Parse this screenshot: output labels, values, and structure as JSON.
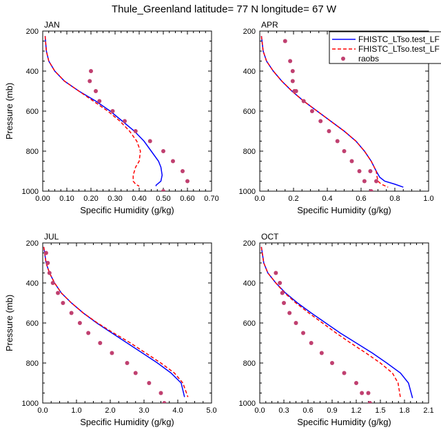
{
  "title": "Thule_Greenland  latitude= 77 N longitude= 67 W",
  "legend": {
    "placement": "top-right",
    "entries": [
      {
        "label": "FHISTC_LTso.test_LF",
        "style": "solid",
        "color": "#0000ff"
      },
      {
        "label": "FHISTC_LTso.test_LF",
        "style": "dashed",
        "color": "#ff0000"
      },
      {
        "label": "raobs",
        "style": "marker",
        "color": "#c04070"
      }
    ]
  },
  "chart_data": [
    {
      "type": "line",
      "panel": "JAN",
      "xlabel": "Specific Humidity (g/kg)",
      "ylabel": "Pressure (mb)",
      "xlim": [
        0,
        0.7
      ],
      "ylim": [
        200,
        1000
      ],
      "y_inverted": true,
      "xticks": [
        "0.00",
        "0.10",
        "0.20",
        "0.30",
        "0.40",
        "0.50",
        "0.60",
        "0.70"
      ],
      "xtick_values": [
        0,
        0.1,
        0.2,
        0.3,
        0.4,
        0.5,
        0.6,
        0.7
      ],
      "yticks": [
        "200",
        "400",
        "600",
        "800",
        "1000"
      ],
      "ytick_values": [
        200,
        400,
        600,
        800,
        1000
      ],
      "series": [
        {
          "name": "FHISTC_LTso.test_LF",
          "style": "solid",
          "color": "#0000ff",
          "x": [
            0.01,
            0.015,
            0.025,
            0.05,
            0.09,
            0.15,
            0.22,
            0.28,
            0.33,
            0.38,
            0.42,
            0.45,
            0.48,
            0.49,
            0.495,
            0.49,
            0.48,
            0.47,
            0.47
          ],
          "y": [
            225,
            300,
            350,
            400,
            450,
            500,
            550,
            600,
            650,
            700,
            750,
            800,
            850,
            880,
            920,
            950,
            960,
            970,
            975
          ]
        },
        {
          "name": "FHISTC_LTso.test_LF",
          "style": "dashed",
          "color": "#ff0000",
          "x": [
            0.01,
            0.015,
            0.025,
            0.05,
            0.09,
            0.15,
            0.21,
            0.27,
            0.32,
            0.36,
            0.39,
            0.405,
            0.4,
            0.385,
            0.375,
            0.375,
            0.385,
            0.4
          ],
          "y": [
            225,
            300,
            350,
            400,
            450,
            500,
            550,
            600,
            650,
            700,
            750,
            800,
            850,
            880,
            920,
            950,
            965,
            975
          ]
        },
        {
          "name": "raobs",
          "style": "marker",
          "color": "#c04070",
          "x": [
            0.2,
            0.195,
            0.22,
            0.235,
            0.29,
            0.34,
            0.385,
            0.445,
            0.5,
            0.54,
            0.58,
            0.6,
            0.5
          ],
          "y": [
            400,
            450,
            500,
            550,
            600,
            650,
            700,
            750,
            800,
            850,
            900,
            950,
            1000
          ]
        }
      ]
    },
    {
      "type": "line",
      "panel": "APR",
      "xlabel": "Specific Humidity (g/kg)",
      "ylabel": "",
      "xlim": [
        0,
        1.0
      ],
      "ylim": [
        200,
        1000
      ],
      "y_inverted": true,
      "xticks": [
        "0.0",
        "0.2",
        "0.4",
        "0.6",
        "0.8",
        "1.0"
      ],
      "xtick_values": [
        0,
        0.2,
        0.4,
        0.6,
        0.8,
        1.0
      ],
      "yticks": [
        "200",
        "400",
        "600",
        "800",
        "1000"
      ],
      "ytick_values": [
        200,
        400,
        600,
        800,
        1000
      ],
      "series": [
        {
          "name": "FHISTC_LTso.test_LF",
          "style": "solid",
          "color": "#0000ff",
          "x": [
            0.01,
            0.02,
            0.04,
            0.08,
            0.13,
            0.19,
            0.26,
            0.34,
            0.42,
            0.5,
            0.57,
            0.62,
            0.66,
            0.69,
            0.71,
            0.74,
            0.8,
            0.85
          ],
          "y": [
            225,
            300,
            350,
            400,
            450,
            500,
            550,
            600,
            650,
            700,
            750,
            800,
            850,
            900,
            930,
            950,
            965,
            980
          ]
        },
        {
          "name": "FHISTC_LTso.test_LF",
          "style": "dashed",
          "color": "#ff0000",
          "x": [
            0.01,
            0.02,
            0.04,
            0.08,
            0.13,
            0.19,
            0.26,
            0.34,
            0.42,
            0.5,
            0.57,
            0.62,
            0.66,
            0.69,
            0.695,
            0.7,
            0.72,
            0.76
          ],
          "y": [
            225,
            300,
            350,
            400,
            450,
            500,
            550,
            600,
            650,
            700,
            750,
            800,
            850,
            900,
            930,
            950,
            965,
            980
          ]
        },
        {
          "name": "raobs",
          "style": "marker",
          "color": "#c04070",
          "x": [
            0.15,
            0.18,
            0.195,
            0.195,
            0.205,
            0.215,
            0.26,
            0.31,
            0.36,
            0.41,
            0.46,
            0.5,
            0.545,
            0.59,
            0.62,
            0.655,
            0.69,
            0.66
          ],
          "y": [
            250,
            350,
            400,
            450,
            500,
            500,
            550,
            600,
            650,
            700,
            750,
            800,
            850,
            900,
            950,
            900,
            950,
            1000
          ]
        }
      ]
    },
    {
      "type": "line",
      "panel": "JUL",
      "xlabel": "Specific Humidity (g/kg)",
      "ylabel": "Pressure (mb)",
      "xlim": [
        0,
        5.0
      ],
      "ylim": [
        200,
        1000
      ],
      "y_inverted": true,
      "xticks": [
        "0.0",
        "1.0",
        "2.0",
        "3.0",
        "4.0",
        "5.0"
      ],
      "xtick_values": [
        0,
        1,
        2,
        3,
        4,
        5
      ],
      "yticks": [
        "200",
        "400",
        "600",
        "800",
        "1000"
      ],
      "ytick_values": [
        200,
        400,
        600,
        800,
        1000
      ],
      "series": [
        {
          "name": "FHISTC_LTso.test_LF",
          "style": "solid",
          "color": "#0000ff",
          "x": [
            0.03,
            0.1,
            0.2,
            0.35,
            0.55,
            0.85,
            1.2,
            1.6,
            2.05,
            2.5,
            2.95,
            3.4,
            3.8,
            4.1,
            4.2
          ],
          "y": [
            220,
            300,
            350,
            400,
            450,
            500,
            550,
            600,
            650,
            700,
            750,
            800,
            850,
            900,
            970
          ]
        },
        {
          "name": "FHISTC_LTso.test_LF",
          "style": "dashed",
          "color": "#ff0000",
          "x": [
            0.03,
            0.1,
            0.2,
            0.35,
            0.55,
            0.85,
            1.2,
            1.62,
            2.1,
            2.6,
            3.05,
            3.5,
            3.9,
            4.15,
            4.3
          ],
          "y": [
            220,
            300,
            350,
            400,
            450,
            500,
            550,
            600,
            650,
            700,
            750,
            800,
            850,
            900,
            970
          ]
        },
        {
          "name": "raobs",
          "style": "marker",
          "color": "#c04070",
          "x": [
            0.1,
            0.15,
            0.2,
            0.3,
            0.45,
            0.6,
            0.85,
            1.1,
            1.35,
            1.7,
            2.05,
            2.5,
            2.75,
            3.15,
            3.5,
            3.6
          ],
          "y": [
            250,
            300,
            350,
            400,
            450,
            500,
            550,
            600,
            650,
            700,
            750,
            800,
            850,
            900,
            950,
            1000
          ]
        }
      ]
    },
    {
      "type": "line",
      "panel": "OCT",
      "xlabel": "Specific Humidity (g/kg)",
      "ylabel": "",
      "xlim": [
        0,
        2.1
      ],
      "ylim": [
        200,
        1000
      ],
      "y_inverted": true,
      "xticks": [
        "0.0",
        "0.3",
        "0.6",
        "0.9",
        "1.2",
        "1.5",
        "1.8",
        "2.1"
      ],
      "xtick_values": [
        0,
        0.3,
        0.6,
        0.9,
        1.2,
        1.5,
        1.8,
        2.1
      ],
      "yticks": [
        "200",
        "400",
        "600",
        "800",
        "1000"
      ],
      "ytick_values": [
        200,
        400,
        600,
        800,
        1000
      ],
      "series": [
        {
          "name": "FHISTC_LTso.test_LF",
          "style": "solid",
          "color": "#0000ff",
          "x": [
            0.02,
            0.05,
            0.1,
            0.2,
            0.32,
            0.47,
            0.64,
            0.82,
            1.0,
            1.2,
            1.4,
            1.58,
            1.75,
            1.85,
            1.9
          ],
          "y": [
            220,
            300,
            350,
            400,
            450,
            500,
            550,
            600,
            650,
            700,
            750,
            800,
            850,
            900,
            975
          ]
        },
        {
          "name": "FHISTC_LTso.test_LF",
          "style": "dashed",
          "color": "#ff0000",
          "x": [
            0.02,
            0.05,
            0.1,
            0.2,
            0.31,
            0.45,
            0.61,
            0.78,
            0.95,
            1.13,
            1.32,
            1.5,
            1.65,
            1.72,
            1.75
          ],
          "y": [
            220,
            300,
            350,
            400,
            450,
            500,
            550,
            600,
            650,
            700,
            750,
            800,
            850,
            900,
            975
          ]
        },
        {
          "name": "raobs",
          "style": "marker",
          "color": "#c04070",
          "x": [
            0.2,
            0.25,
            0.28,
            0.3,
            0.37,
            0.45,
            0.54,
            0.64,
            0.77,
            0.9,
            1.05,
            1.2,
            1.27,
            1.35,
            1.37,
            1.37
          ],
          "y": [
            350,
            400,
            450,
            500,
            550,
            600,
            650,
            700,
            750,
            800,
            850,
            900,
            950,
            950,
            1000,
            1000
          ]
        }
      ]
    }
  ]
}
